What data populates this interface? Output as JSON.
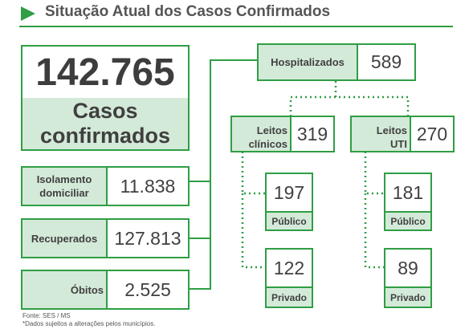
{
  "header": {
    "title": "Situação Atual dos Casos Confirmados",
    "accent_color": "#2f9e44",
    "marker_icon": "play-triangle-icon"
  },
  "total": {
    "value": "142.765",
    "label_line1": "Casos",
    "label_line2": "confirmados"
  },
  "isolamento": {
    "label_line1": "Isolamento",
    "label_line2": "domiciliar",
    "value": "11.838"
  },
  "recuperados": {
    "label": "Recuperados",
    "value": "127.813"
  },
  "obitos": {
    "label": "Óbitos",
    "value": "2.525"
  },
  "hospitalizados": {
    "label": "Hospitalizados",
    "value": "589"
  },
  "leitos_clinicos": {
    "label_line1": "Leitos",
    "label_line2": "clínicos",
    "value": "319",
    "publico": {
      "value": "197",
      "label": "Público"
    },
    "privado": {
      "value": "122",
      "label": "Privado"
    }
  },
  "leitos_uti": {
    "label_line1": "Leitos",
    "label_line2": "UTI",
    "value": "270",
    "publico": {
      "value": "181",
      "label": "Público"
    },
    "privado": {
      "value": "89",
      "label": "Privado"
    }
  },
  "footnote": {
    "source": "Fonte: SES / MS",
    "note": "*Dados sujeitos a alterações pelos municípios."
  }
}
